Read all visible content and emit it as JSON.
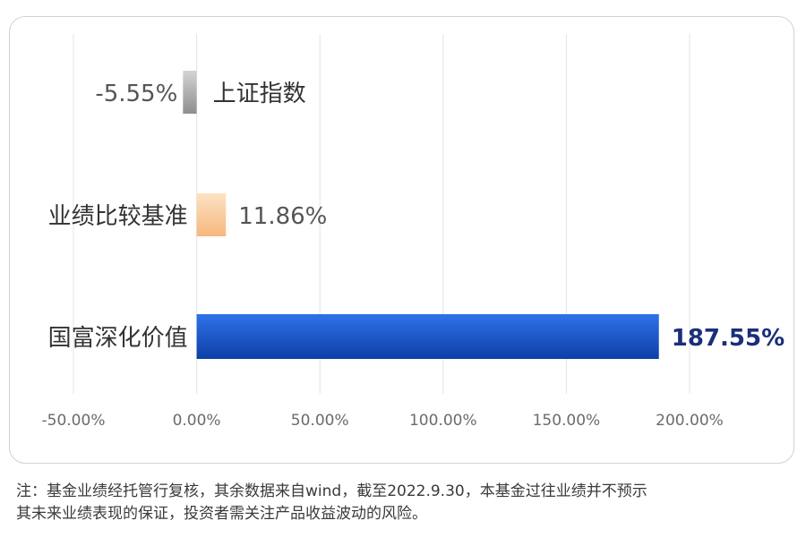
{
  "chart_data": {
    "type": "bar",
    "orientation": "horizontal",
    "categories": [
      "上证指数",
      "业绩比较基准",
      "国富深化价值"
    ],
    "values": [
      -5.55,
      11.86,
      187.55
    ],
    "value_labels": [
      "-5.55%",
      "11.86%",
      "187.55%"
    ],
    "xlim": [
      -50,
      200
    ],
    "x_ticks": [
      -50,
      0,
      50,
      100,
      150,
      200
    ],
    "x_tick_labels": [
      "-50.00%",
      "0.00%",
      "50.00%",
      "100.00%",
      "150.00%",
      "200.00%"
    ],
    "grid": true,
    "colors": {
      "上证指数": "#a9a9a9",
      "业绩比较基准": "#f9c896",
      "国富深化价值": "#1650c4",
      "highlight_label": "#1a2f7a"
    }
  },
  "note": {
    "line1": "注：基金业绩经托管行复核，其余数据来自wind，截至2022.9.30，本基金过往业绩并不预示",
    "line2": "其未来业绩表现的保证，投资者需关注产品收益波动的风险。"
  }
}
